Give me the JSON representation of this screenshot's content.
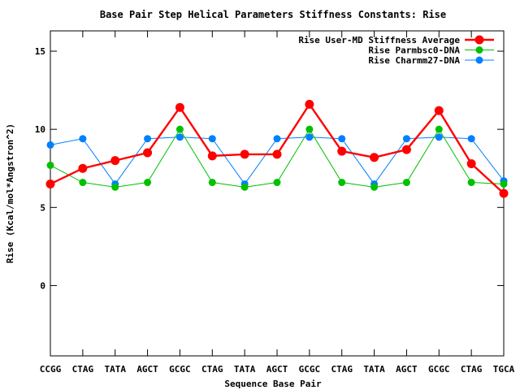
{
  "chart_data": {
    "type": "line",
    "title": "Base Pair Step Helical Parameters Stiffness Constants: Rise",
    "xlabel": "Sequence Base Pair",
    "ylabel": "Rise (Kcal/mol*Angstron^2)",
    "categories": [
      "CCGG",
      "CTAG",
      "TATA",
      "AGCT",
      "GCGC",
      "CTAG",
      "TATA",
      "AGCT",
      "GCGC",
      "CTAG",
      "TATA",
      "AGCT",
      "GCGC",
      "CTAG",
      "TGCA"
    ],
    "ylim": [
      -4.5,
      16.3
    ],
    "yticks": [
      0,
      5,
      10,
      15
    ],
    "grid": false,
    "legend_position": "top-right",
    "series": [
      {
        "name": "Rise User-MD Stiffness Average",
        "color": "#ff0000",
        "values": [
          6.5,
          7.5,
          8.0,
          8.5,
          11.4,
          8.3,
          8.4,
          8.4,
          11.6,
          8.6,
          8.2,
          8.7,
          11.2,
          7.8,
          5.9
        ]
      },
      {
        "name": "Rise Parmbsc0-DNA",
        "color": "#00c000",
        "values": [
          7.7,
          6.6,
          6.3,
          6.6,
          10.0,
          6.6,
          6.3,
          6.6,
          10.0,
          6.6,
          6.3,
          6.6,
          10.0,
          6.6,
          6.5
        ]
      },
      {
        "name": "Rise Charmm27-DNA",
        "color": "#0080ff",
        "values": [
          9.0,
          9.4,
          6.5,
          9.4,
          9.5,
          9.4,
          6.5,
          9.4,
          9.5,
          9.4,
          6.5,
          9.4,
          9.5,
          9.4,
          6.7
        ]
      }
    ]
  }
}
